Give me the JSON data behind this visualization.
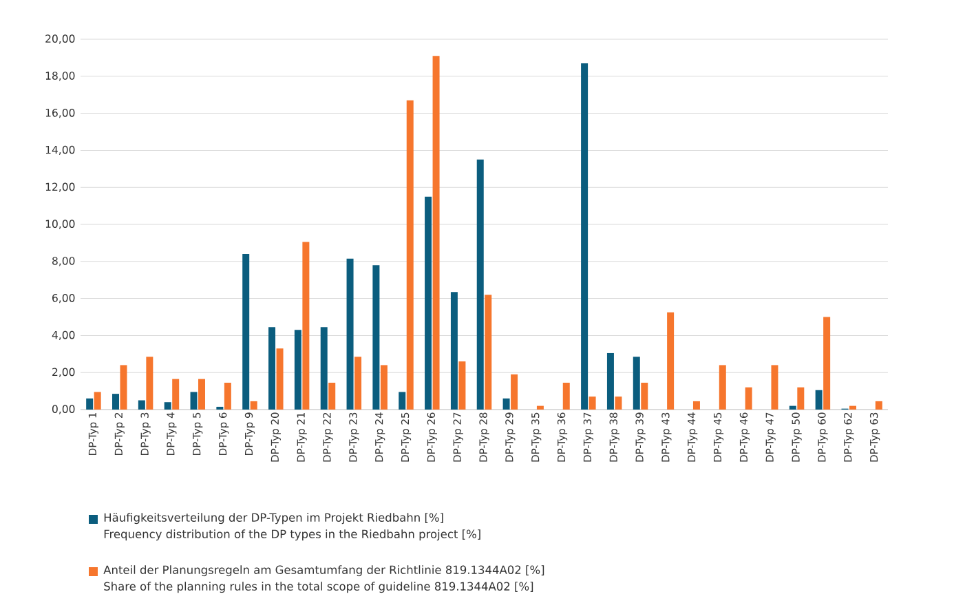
{
  "chart_data": {
    "type": "bar",
    "categories": [
      "DP-Typ 1",
      "DP-Typ 2",
      "DP-Typ 3",
      "DP-Typ 4",
      "DP-Typ 5",
      "DP-Typ 6",
      "DP-Typ 9",
      "DP-Typ 20",
      "DP-Typ 21",
      "DP-Typ 22",
      "DP-Typ 23",
      "DP-Typ 24",
      "DP-Typ 25",
      "DP-Typ 26",
      "DP-Typ 27",
      "DP-Typ 28",
      "DP-Typ 29",
      "DP-Typ 35",
      "DP-Typ 36",
      "DP-Typ 37",
      "DP-Typ 38",
      "DP-Typ 39",
      "DP-Typ 43",
      "DP-Typ 44",
      "DP-Typ 45",
      "DP-Typ 46",
      "DP-Typ 47",
      "DP-Typ 50",
      "DP-Typ 60",
      "DP-Typ 62",
      "DP-Typ 63"
    ],
    "series": [
      {
        "name": "Häufigkeitsverteilung der DP-Typen im Projekt Riedbahn [%]\nFrequency distribution of the DP types in the Riedbahn project [%]",
        "color": "#0b5d7e",
        "values": [
          0.6,
          0.85,
          0.5,
          0.4,
          0.95,
          0.15,
          8.4,
          4.45,
          4.3,
          4.45,
          8.15,
          7.8,
          0.95,
          11.5,
          6.35,
          13.5,
          0.6,
          0,
          0,
          18.7,
          3.05,
          2.85,
          0,
          0,
          0,
          0,
          0,
          0.2,
          1.05,
          0.05,
          0
        ]
      },
      {
        "name": "Anteil der Planungsregeln am Gesamtumfang der Richtlinie 819.1344A02 [%]\nShare of the planning rules in the total scope of guideline 819.1344A02 [%]",
        "color": "#f6762d",
        "values": [
          0.95,
          2.4,
          2.85,
          1.65,
          1.65,
          1.45,
          0.45,
          3.3,
          9.05,
          1.45,
          2.85,
          2.4,
          16.7,
          19.1,
          2.6,
          6.2,
          1.9,
          0.2,
          1.45,
          0.7,
          0.7,
          1.45,
          5.25,
          0.45,
          2.4,
          1.2,
          2.4,
          1.2,
          5.0,
          0.2,
          0.45
        ]
      }
    ],
    "ylim": [
      0,
      20
    ],
    "yticks": [
      {
        "value": 0,
        "label": "0,00"
      },
      {
        "value": 2,
        "label": "2,00"
      },
      {
        "value": 4,
        "label": "4,00"
      },
      {
        "value": 6,
        "label": "6,00"
      },
      {
        "value": 8,
        "label": "8,00"
      },
      {
        "value": 10,
        "label": "10,00"
      },
      {
        "value": 12,
        "label": "12,00"
      },
      {
        "value": 14,
        "label": "14,00"
      },
      {
        "value": 16,
        "label": "16,00"
      },
      {
        "value": 18,
        "label": "18,00"
      },
      {
        "value": 20,
        "label": "20,00"
      }
    ],
    "grid": "y",
    "legend": "bottom"
  }
}
